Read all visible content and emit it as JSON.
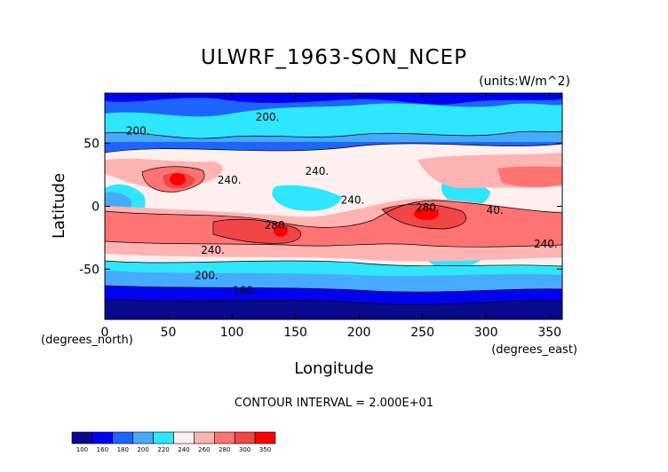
{
  "chart_data": {
    "type": "heatmap",
    "title": "ULWRF_1963-SON_NCEP",
    "units_label": "(units:W/m^2)",
    "xlabel": "Longitude",
    "ylabel": "Latitude",
    "x_unit_label": "(degrees_east)",
    "y_unit_label": "(degrees_north)",
    "xlim": [
      0,
      360
    ],
    "ylim": [
      -90,
      90
    ],
    "x_ticks": [
      0,
      50,
      100,
      150,
      200,
      250,
      300,
      350
    ],
    "y_ticks": [
      -50,
      0,
      50
    ],
    "contour_interval_text": "CONTOUR INTERVAL = 2.000E+01",
    "contour_labels": [
      {
        "text": "200.",
        "lon": 26,
        "lat": 60
      },
      {
        "text": "200.",
        "lon": 128,
        "lat": 71
      },
      {
        "text": "240.",
        "lon": 98,
        "lat": 21
      },
      {
        "text": "240.",
        "lon": 167,
        "lat": 28
      },
      {
        "text": "240.",
        "lon": 195,
        "lat": 5
      },
      {
        "text": "280.",
        "lon": 135,
        "lat": -15
      },
      {
        "text": "280.",
        "lon": 254,
        "lat": -1
      },
      {
        "text": "240.",
        "lon": 85,
        "lat": -35
      },
      {
        "text": "240.",
        "lon": 347,
        "lat": -30
      },
      {
        "text": "200.",
        "lon": 80,
        "lat": -55
      },
      {
        "text": "160.",
        "lon": 110,
        "lat": -67
      },
      {
        "text": "40.",
        "lon": 307,
        "lat": -3
      }
    ],
    "colorbar": {
      "levels": [
        "100",
        "160",
        "180",
        "200",
        "220",
        "240",
        "260",
        "280",
        "300",
        "350"
      ],
      "colors": [
        "#0a0a8c",
        "#0000f0",
        "#1e64ff",
        "#46aaff",
        "#2ee6ff",
        "#fff0f0",
        "#ffb4b4",
        "#ff7373",
        "#f04646",
        "#ff0000"
      ]
    }
  }
}
